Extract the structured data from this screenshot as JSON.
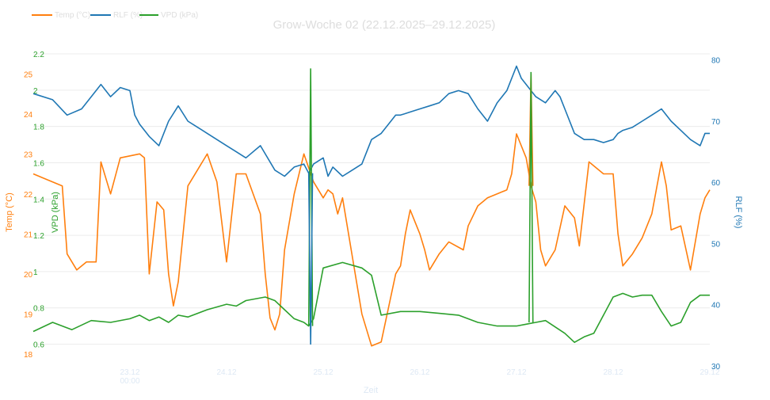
{
  "chart_data": {
    "type": "line",
    "title": "Grow-Woche 02 (22.12.2025–29.12.2025)",
    "xlabel": "Zeit",
    "x_ticks": [
      "23.12\n00:00",
      "24.12",
      "25.12",
      "26.12",
      "27.12",
      "28.12",
      "29.12"
    ],
    "x_range_days": [
      0,
      7
    ],
    "grid": true,
    "legend": "top-left",
    "colors": {
      "temp": "#ff7f0e",
      "rlf": "#1f77b4",
      "vpd": "#2ca02c",
      "title": "#dddddd",
      "legend": "#dddddd",
      "xlabel": "#dde8f4",
      "xtick": "#dde8f4"
    },
    "axes": {
      "temp": {
        "label": "Temp (°C)",
        "range": [
          17.7,
          25.5
        ],
        "ticks": [
          "18",
          "19",
          "20",
          "21",
          "22",
          "23",
          "24",
          "25"
        ]
      },
      "vpd": {
        "label": "VPD (kPa)",
        "range": [
          0.48,
          2.2
        ],
        "ticks": [
          "0.6",
          "0.8",
          "1",
          "1.2",
          "1.4",
          "1.6",
          "1.8",
          "2",
          "2.2"
        ]
      },
      "rlf": {
        "label": "RLF (%)",
        "range": [
          30,
          81
        ],
        "ticks": [
          "30",
          "40",
          "50",
          "60",
          "70",
          "80"
        ]
      }
    },
    "series": [
      {
        "name": "Temp (°C)",
        "key": "temp",
        "axis": "temp",
        "x": [
          0,
          0.1,
          0.3,
          0.35,
          0.45,
          0.5,
          0.55,
          0.65,
          0.7,
          0.8,
          0.9,
          1.1,
          1.15,
          1.2,
          1.28,
          1.35,
          1.4,
          1.45,
          1.5,
          1.6,
          1.8,
          1.9,
          2.0,
          2.1,
          2.2,
          2.35,
          2.4,
          2.45,
          2.5,
          2.55,
          2.6,
          2.7,
          2.8,
          2.9,
          3.0,
          3.05,
          3.1,
          3.15,
          3.2,
          3.4,
          3.5,
          3.6,
          3.75,
          3.8,
          3.85,
          3.9,
          3.95,
          4.0,
          4.05,
          4.1,
          4.2,
          4.3,
          4.45,
          4.5,
          4.6,
          4.7,
          4.8,
          4.9,
          4.95,
          5.0,
          5.1,
          5.15,
          5.2,
          5.25,
          5.3,
          5.4,
          5.5,
          5.6,
          5.65,
          5.75,
          5.9,
          6.0,
          6.05,
          6.1,
          6.2,
          6.3,
          6.4,
          6.5,
          6.55,
          6.6,
          6.7,
          6.8,
          6.9,
          6.95,
          7.0
        ],
        "y": [
          22.5,
          22.4,
          22.2,
          20.5,
          20.1,
          20.2,
          20.3,
          20.3,
          22.8,
          22.0,
          22.9,
          23.0,
          22.9,
          20.0,
          21.8,
          21.6,
          20.0,
          19.2,
          19.8,
          22.2,
          23.0,
          22.3,
          20.3,
          22.5,
          22.5,
          21.5,
          20.0,
          18.9,
          18.6,
          19.0,
          20.6,
          22.0,
          23.0,
          22.3,
          21.9,
          22.1,
          22.0,
          21.5,
          21.9,
          19.0,
          18.2,
          18.3,
          20.0,
          20.2,
          21.0,
          21.6,
          21.3,
          21.0,
          20.6,
          20.1,
          20.5,
          20.8,
          20.6,
          21.2,
          21.7,
          21.9,
          22.0,
          22.1,
          22.5,
          23.5,
          22.9,
          22.2,
          21.8,
          20.6,
          20.2,
          20.6,
          21.7,
          21.4,
          20.7,
          22.8,
          22.5,
          22.5,
          21.0,
          20.2,
          20.5,
          20.9,
          21.5,
          22.8,
          22.2,
          21.1,
          21.2,
          20.1,
          21.5,
          21.9,
          22.1
        ]
      },
      {
        "name": "RLF (%)",
        "key": "rlf",
        "axis": "rlf",
        "x": [
          0,
          0.2,
          0.35,
          0.5,
          0.65,
          0.7,
          0.8,
          0.9,
          1.0,
          1.05,
          1.1,
          1.2,
          1.3,
          1.4,
          1.5,
          1.6,
          1.7,
          1.8,
          2.0,
          2.1,
          2.2,
          2.35,
          2.5,
          2.6,
          2.7,
          2.8,
          2.85,
          2.9,
          3.0,
          3.05,
          3.1,
          3.2,
          3.3,
          3.4,
          3.5,
          3.6,
          3.7,
          3.75,
          3.8,
          3.9,
          4.0,
          4.1,
          4.2,
          4.3,
          4.4,
          4.5,
          4.6,
          4.7,
          4.8,
          4.9,
          5.0,
          5.05,
          5.1,
          5.2,
          5.3,
          5.4,
          5.45,
          5.5,
          5.6,
          5.7,
          5.8,
          5.9,
          6.0,
          6.05,
          6.1,
          6.2,
          6.3,
          6.4,
          6.5,
          6.6,
          6.7,
          6.8,
          6.9,
          6.95,
          7.0
        ],
        "y": [
          74.5,
          73.5,
          71.0,
          72.0,
          75.0,
          76.0,
          74.0,
          75.5,
          75.0,
          71.0,
          69.5,
          67.5,
          66.0,
          70.0,
          72.5,
          70.0,
          69.0,
          68.0,
          66.0,
          65.0,
          64.0,
          66.0,
          62.0,
          61.0,
          62.5,
          63.0,
          61.5,
          63.0,
          64.0,
          61.0,
          62.5,
          61.0,
          62.0,
          63.0,
          67.0,
          68.0,
          70.0,
          71.0,
          71.0,
          71.5,
          72.0,
          72.5,
          73.0,
          74.5,
          75.0,
          74.5,
          72.0,
          70.0,
          73.0,
          75.0,
          79.0,
          77.0,
          76.0,
          74.0,
          73.0,
          75.0,
          74.0,
          72.0,
          68.0,
          67.0,
          67.0,
          66.5,
          67.0,
          68.0,
          68.5,
          69.0,
          70.0,
          71.0,
          72.0,
          70.0,
          68.5,
          67.0,
          66.0,
          68.0,
          68.0
        ]
      },
      {
        "name": "VPD (kPa)",
        "key": "vpd",
        "axis": "vpd",
        "x": [
          0,
          0.2,
          0.4,
          0.6,
          0.8,
          1.0,
          1.1,
          1.2,
          1.3,
          1.4,
          1.5,
          1.6,
          1.8,
          2.0,
          2.1,
          2.2,
          2.4,
          2.5,
          2.6,
          2.7,
          2.8,
          2.85,
          2.9,
          3.0,
          3.2,
          3.4,
          3.5,
          3.6,
          3.8,
          4.0,
          4.2,
          4.4,
          4.6,
          4.8,
          5.0,
          5.1,
          5.2,
          5.3,
          5.5,
          5.6,
          5.7,
          5.8,
          5.9,
          6.0,
          6.1,
          6.2,
          6.3,
          6.4,
          6.5,
          6.6,
          6.7,
          6.8,
          6.9,
          7.0
        ],
        "y": [
          0.67,
          0.72,
          0.68,
          0.73,
          0.72,
          0.74,
          0.76,
          0.73,
          0.75,
          0.72,
          0.76,
          0.75,
          0.79,
          0.82,
          0.81,
          0.84,
          0.86,
          0.84,
          0.79,
          0.74,
          0.72,
          0.7,
          0.74,
          1.02,
          1.05,
          1.02,
          0.98,
          0.76,
          0.78,
          0.78,
          0.77,
          0.76,
          0.72,
          0.7,
          0.7,
          0.71,
          0.72,
          0.73,
          0.66,
          0.61,
          0.64,
          0.66,
          0.76,
          0.86,
          0.88,
          0.86,
          0.87,
          0.87,
          0.78,
          0.7,
          0.72,
          0.83,
          0.87,
          0.87
        ]
      }
    ],
    "spikes": [
      {
        "key": "vpd",
        "axis": "vpd",
        "x": 2.87,
        "y": 2.12
      },
      {
        "key": "rlf",
        "axis": "rlf",
        "x": 2.87,
        "y": 33.5
      },
      {
        "key": "temp",
        "axis": "temp",
        "x": 5.15,
        "y": 25.0
      },
      {
        "key": "vpd",
        "axis": "vpd",
        "x": 5.15,
        "y": 2.1
      }
    ]
  }
}
